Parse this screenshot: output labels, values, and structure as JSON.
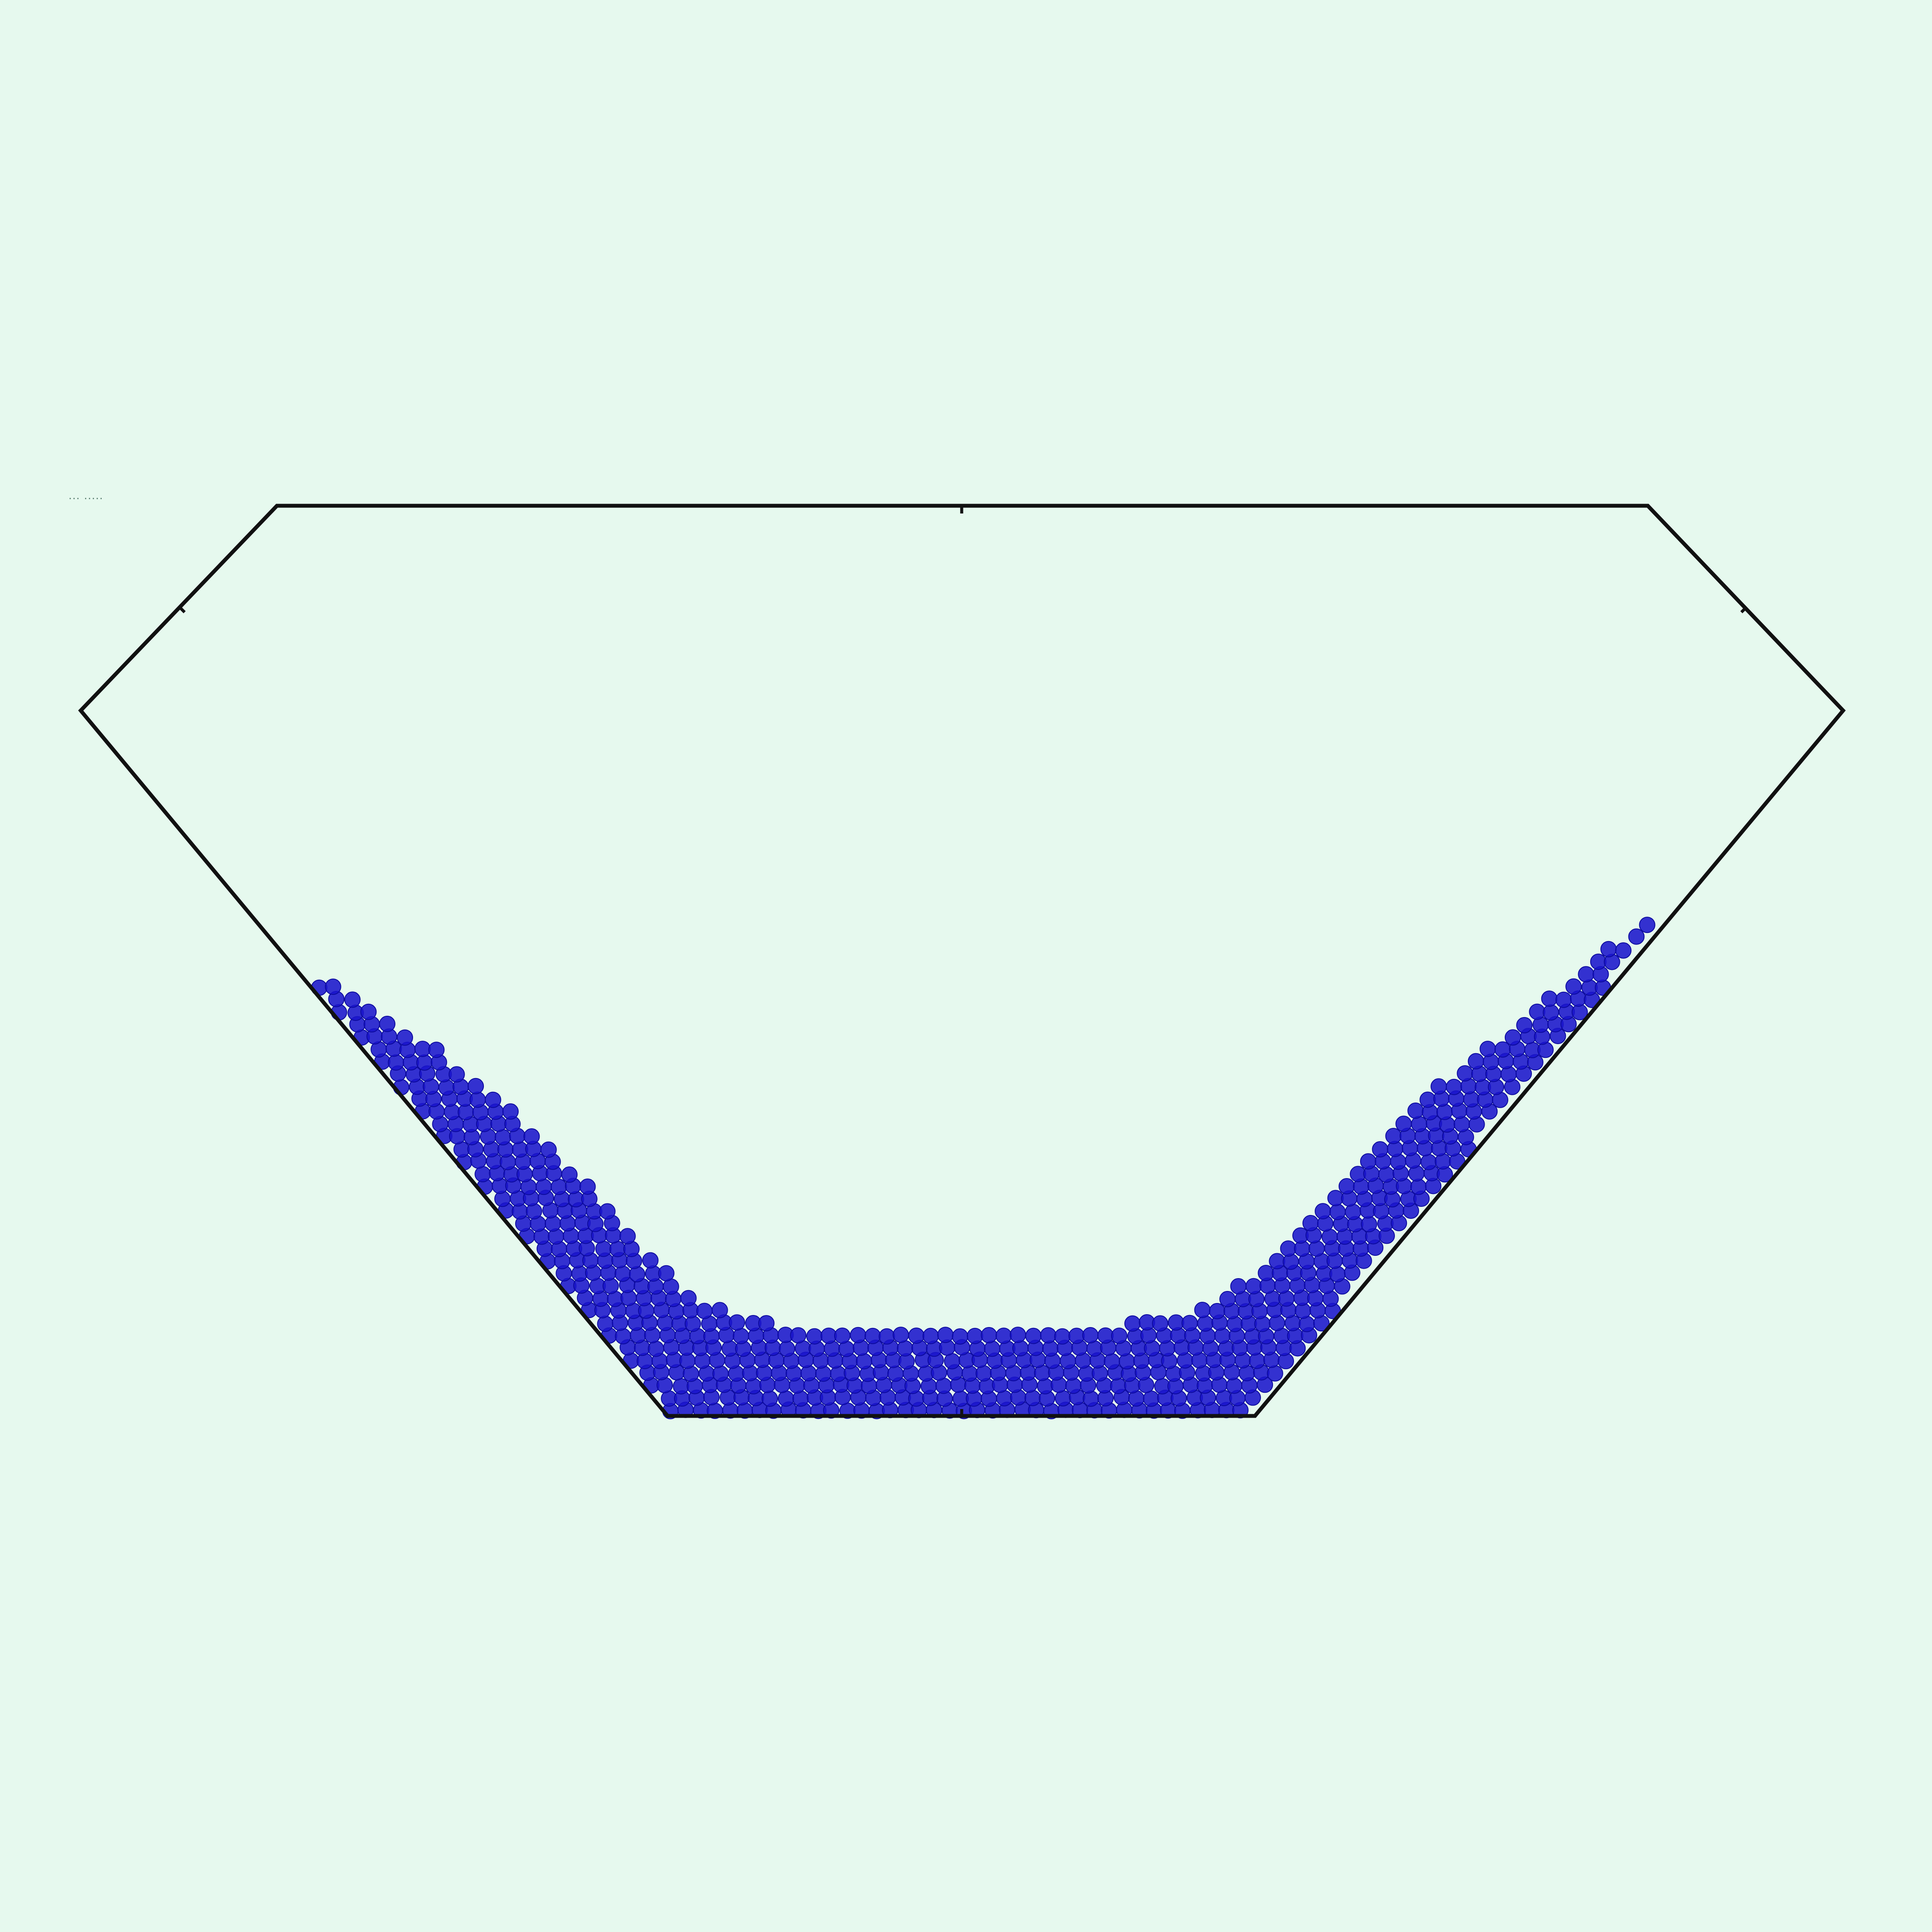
{
  "colors": {
    "background": "#e6f9ee",
    "vessel_outline": "#111111",
    "particle_fill": "#1a14cc",
    "particle_stroke": "#0c0a9e"
  },
  "corner_label": "··· ·····"
}
